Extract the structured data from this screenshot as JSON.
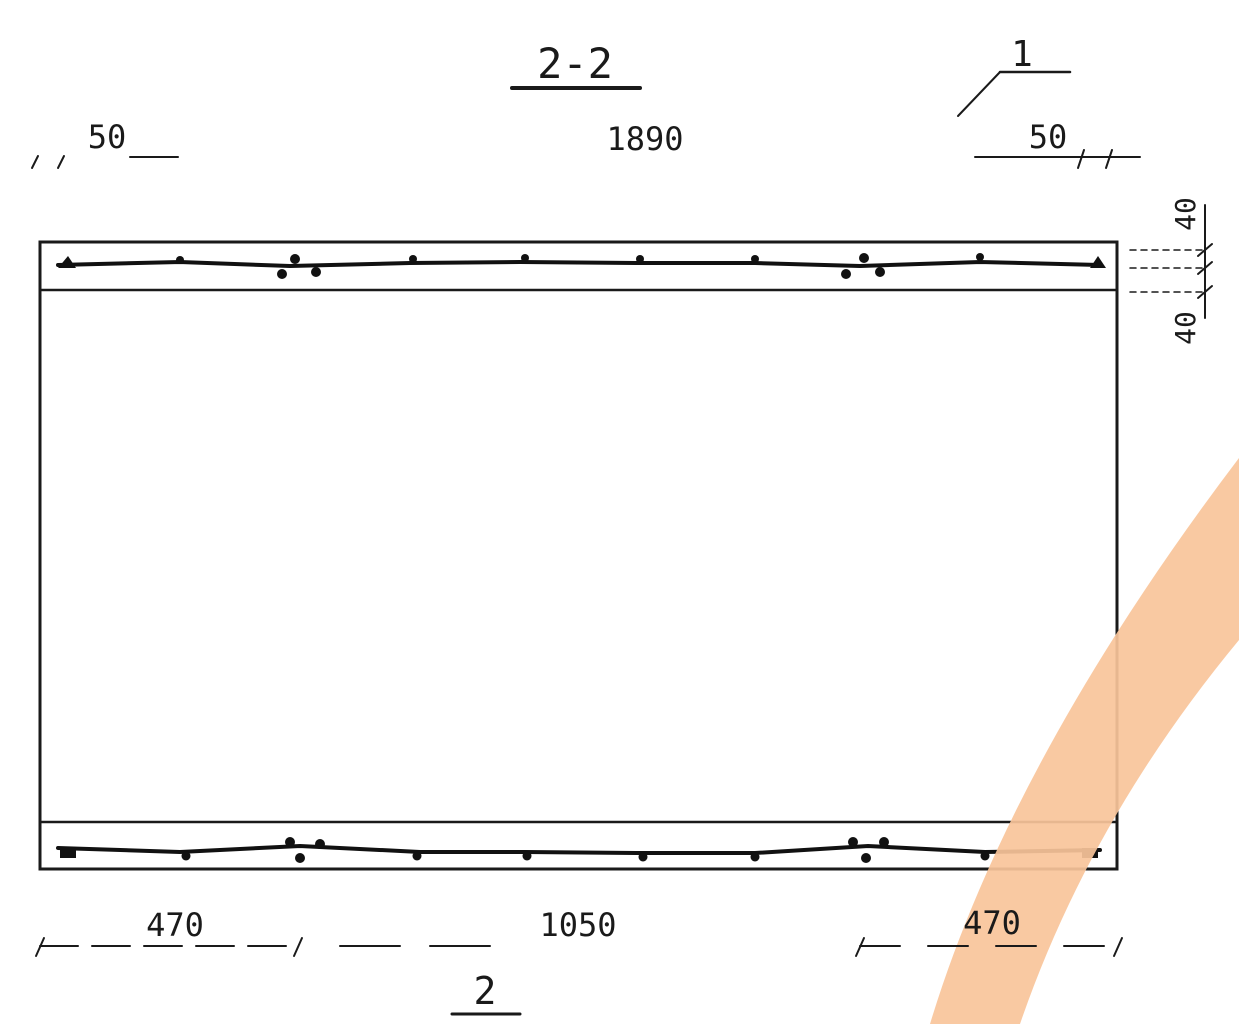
{
  "section": {
    "title": "2-2",
    "callout_top": "1",
    "callout_bottom": "2"
  },
  "dimensions": {
    "top_left": "50",
    "top_overall": "1890",
    "top_right": "50",
    "side_upper": "40",
    "side_lower": "40",
    "bottom_left": "470",
    "bottom_middle": "1050",
    "bottom_right": "470"
  },
  "colors": {
    "line": "#1a1a1a",
    "overlay_arc": "#f8c49a"
  }
}
